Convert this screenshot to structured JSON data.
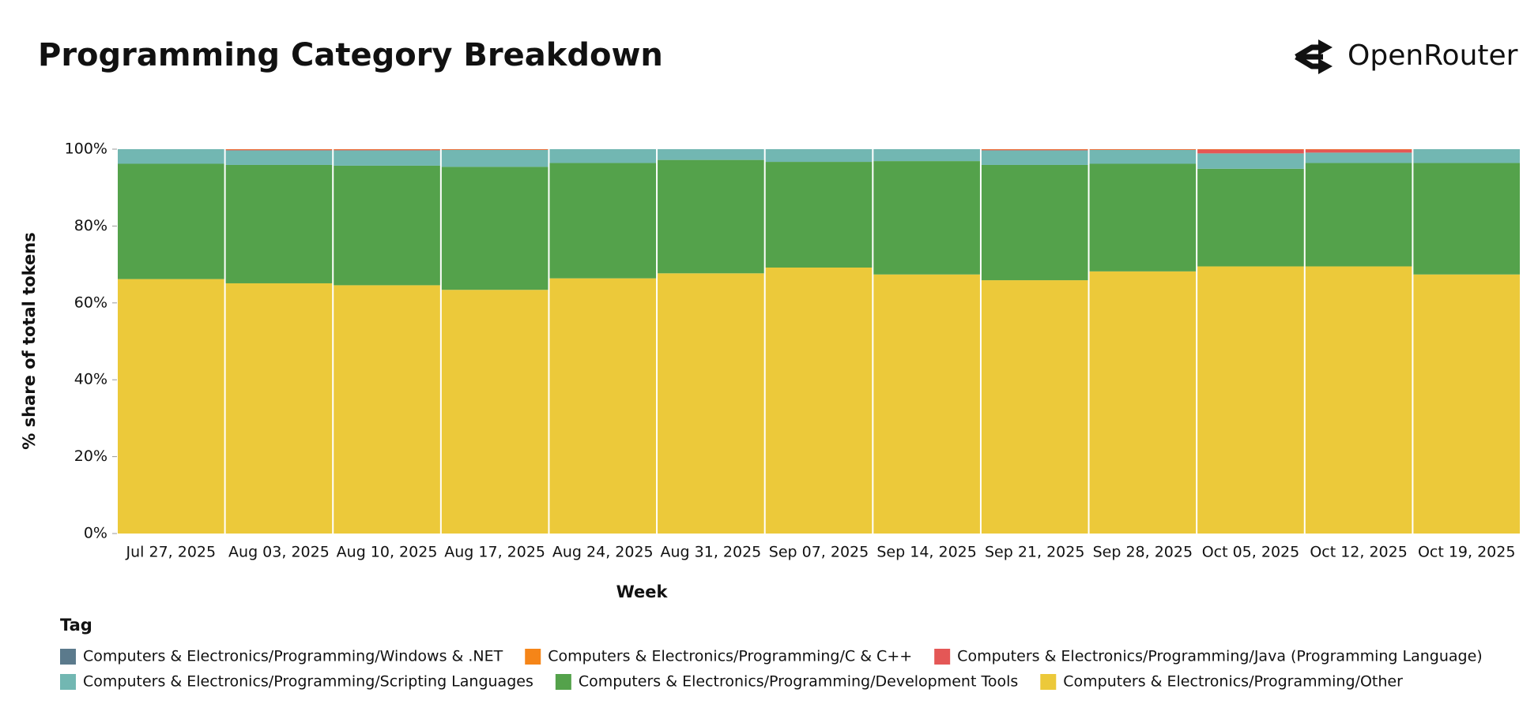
{
  "brand": "OpenRouter",
  "chart_data": {
    "type": "stacked_bar",
    "title": "Programming Category Breakdown",
    "x_label": "Week",
    "y_label": "% share of total tokens",
    "legend_title": "Tag",
    "categories": [
      "Jul 27, 2025",
      "Aug 03, 2025",
      "Aug 10, 2025",
      "Aug 17, 2025",
      "Aug 24, 2025",
      "Aug 31, 2025",
      "Sep 07, 2025",
      "Sep 14, 2025",
      "Sep 21, 2025",
      "Sep 28, 2025",
      "Oct 05, 2025",
      "Oct 12, 2025",
      "Oct 19, 2025"
    ],
    "ylim": [
      0,
      100
    ],
    "yticks": [
      {
        "value": 0,
        "label": "0%"
      },
      {
        "value": 20,
        "label": "20%"
      },
      {
        "value": 40,
        "label": "40%"
      },
      {
        "value": 60,
        "label": "60%"
      },
      {
        "value": 80,
        "label": "80%"
      },
      {
        "value": 100,
        "label": "100%"
      }
    ],
    "series": [
      {
        "name": "Computers & Electronics/Programming/Windows & .NET",
        "color": "#5b7a8c",
        "values": [
          0,
          0,
          0,
          0,
          0,
          0,
          0,
          0,
          0,
          0,
          0,
          0,
          0
        ]
      },
      {
        "name": "Computers & Electronics/Programming/C & C++",
        "color": "#f58518",
        "values": [
          0,
          0.1,
          0.1,
          0.1,
          0,
          0,
          0,
          0,
          0.1,
          0.1,
          0.1,
          0.1,
          0
        ]
      },
      {
        "name": "Computers & Electronics/Programming/Java (Programming Language)",
        "color": "#e45756",
        "values": [
          0,
          0.2,
          0.2,
          0.1,
          0,
          0,
          0,
          0,
          0.2,
          0.1,
          1.0,
          0.8,
          0
        ]
      },
      {
        "name": "Computers & Electronics/Programming/Scripting Languages",
        "color": "#72b7b2",
        "values": [
          3.8,
          3.8,
          4.0,
          4.4,
          3.6,
          2.8,
          3.3,
          3.1,
          3.8,
          3.6,
          4.0,
          2.7,
          3.6
        ]
      },
      {
        "name": "Computers & Electronics/Programming/Development Tools",
        "color": "#54a24b",
        "values": [
          30.0,
          30.8,
          31.1,
          32.0,
          30.0,
          29.5,
          27.5,
          29.5,
          30.0,
          28.0,
          25.4,
          26.9,
          29.0
        ]
      },
      {
        "name": "Computers & Electronics/Programming/Other",
        "color": "#ecc93a",
        "values": [
          66.2,
          65.1,
          64.6,
          63.4,
          66.4,
          67.7,
          69.2,
          67.4,
          65.9,
          68.2,
          69.5,
          69.5,
          67.4
        ]
      }
    ]
  }
}
